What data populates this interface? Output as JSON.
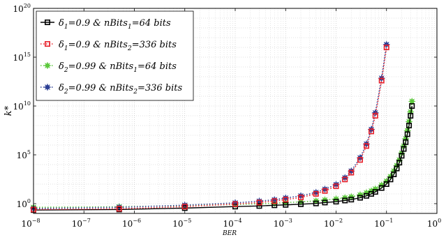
{
  "chart_data": {
    "type": "line",
    "title": "",
    "xlabel": "BER",
    "ylabel": "k*",
    "x_scale": "log",
    "y_scale": "log",
    "xlim": [
      1e-08,
      1
    ],
    "ylim": [
      0.1,
      1e+20
    ],
    "grid": true,
    "legend_position": "top-left",
    "x_ticks": [
      {
        "base": "10",
        "exp": "−8"
      },
      {
        "base": "10",
        "exp": "−7"
      },
      {
        "base": "10",
        "exp": "−6"
      },
      {
        "base": "10",
        "exp": "−5"
      },
      {
        "base": "10",
        "exp": "−4"
      },
      {
        "base": "10",
        "exp": "−3"
      },
      {
        "base": "10",
        "exp": "−2"
      },
      {
        "base": "10",
        "exp": "−1"
      },
      {
        "base": "10",
        "exp": "0"
      }
    ],
    "y_ticks": [
      {
        "base": "10",
        "exp": "0"
      },
      {
        "base": "10",
        "exp": "5"
      },
      {
        "base": "10",
        "exp": "10"
      },
      {
        "base": "10",
        "exp": "15"
      },
      {
        "base": "10",
        "exp": "20"
      }
    ],
    "series": [
      {
        "legend": {
          "pre": "δ",
          "sub1": "1",
          "mid": "=0.9 & nBits",
          "sub2": "1",
          "post": "=64 bits"
        },
        "color": "#000000",
        "marker": "square",
        "line": "solid",
        "x": [
          1e-08,
          5e-07,
          1e-05,
          0.0001,
          0.0003,
          0.0006,
          0.001,
          0.002,
          0.004,
          0.006,
          0.01,
          0.015,
          0.02,
          0.03,
          0.04,
          0.05,
          0.06,
          0.08,
          0.1,
          0.12,
          0.14,
          0.16,
          0.18,
          0.2,
          0.22,
          0.24,
          0.26,
          0.28,
          0.3,
          0.32
        ],
        "y": [
          0.22,
          0.25,
          0.35,
          0.5,
          0.58,
          0.68,
          0.75,
          0.88,
          1.05,
          1.3,
          1.6,
          2.1,
          2.6,
          4.0,
          6.3,
          10,
          16,
          40,
          100,
          300,
          1000,
          4000,
          16000.0,
          80000.0,
          400000.0,
          2000000.0,
          13000000.0,
          100000000.0,
          1000000000.0,
          10000000000.0
        ]
      },
      {
        "legend": {
          "pre": "δ",
          "sub1": "1",
          "mid": "=0.9 & nBits",
          "sub2": "2",
          "post": "=336 bits"
        },
        "color": "#e8202a",
        "marker": "square",
        "line": "dotted",
        "x": [
          1e-08,
          5e-07,
          1e-05,
          0.0001,
          0.0003,
          0.0006,
          0.001,
          0.002,
          0.004,
          0.006,
          0.01,
          0.015,
          0.02,
          0.03,
          0.04,
          0.05,
          0.06,
          0.08,
          0.1
        ],
        "y": [
          0.25,
          0.3,
          0.5,
          0.9,
          1.3,
          1.8,
          2.6,
          4.3,
          10,
          20,
          60,
          300,
          1500,
          30000.0,
          800000.0,
          25000000.0,
          1000000000.0,
          4000000000000.0,
          1e+16
        ]
      },
      {
        "legend": {
          "pre": "δ",
          "sub1": "2",
          "mid": "=0.99 & nBits",
          "sub2": "1",
          "post": "=64 bits"
        },
        "color": "#5cc83c",
        "marker": "star",
        "line": "dotted",
        "x": [
          1e-08,
          5e-07,
          1e-05,
          0.0001,
          0.0003,
          0.0006,
          0.001,
          0.002,
          0.004,
          0.006,
          0.01,
          0.015,
          0.02,
          0.03,
          0.04,
          0.05,
          0.06,
          0.08,
          0.1,
          0.12,
          0.14,
          0.16,
          0.18,
          0.2,
          0.22,
          0.24,
          0.26,
          0.28,
          0.3,
          0.32
        ],
        "y": [
          0.42,
          0.48,
          0.62,
          0.82,
          0.95,
          1.08,
          1.3,
          1.5,
          1.9,
          2.4,
          3.0,
          4.0,
          5.0,
          8.0,
          13,
          20,
          32,
          80,
          200,
          600,
          2200,
          8000,
          30000.0,
          150000.0,
          800000.0,
          4500000.0,
          30000000.0,
          250000000.0,
          2500000000.0,
          30000000000.0
        ]
      },
      {
        "legend": {
          "pre": "δ",
          "sub1": "2",
          "mid": "=0.99 & nBits",
          "sub2": "2",
          "post": "=336 bits"
        },
        "color": "#2c3f94",
        "marker": "star",
        "line": "dotted",
        "x": [
          1e-08,
          5e-07,
          1e-05,
          0.0001,
          0.0003,
          0.0006,
          0.001,
          0.002,
          0.004,
          0.006,
          0.01,
          0.015,
          0.02,
          0.03,
          0.04,
          0.05,
          0.06,
          0.08,
          0.1
        ],
        "y": [
          0.32,
          0.42,
          0.7,
          1.2,
          1.8,
          2.5,
          3.8,
          6.3,
          14,
          30,
          90,
          450,
          2200,
          50000.0,
          1300000.0,
          40000000.0,
          2000000000.0,
          7000000000000.0,
          2e+16
        ]
      }
    ]
  }
}
